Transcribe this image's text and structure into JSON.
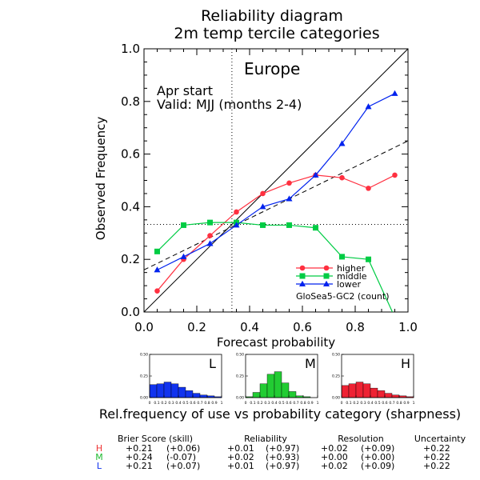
{
  "chart_data": {
    "type": "line",
    "title": "Reliability diagram",
    "subtitle": "2m temp tercile categories",
    "region": "Europe",
    "annotation_line1": "Apr start",
    "annotation_line2": "Valid: MJJ (months 2-4)",
    "model_label": "GloSea5-GC2 (count)",
    "xlabel": "Forecast probability",
    "ylabel": "Observed Frequency",
    "xlim": [
      0,
      1
    ],
    "ylim": [
      0,
      1
    ],
    "x_ticks": [
      "0.0",
      "0.2",
      "0.4",
      "0.6",
      "0.8",
      "1.0"
    ],
    "y_ticks": [
      "0.0",
      "0.2",
      "0.4",
      "0.6",
      "0.8",
      "1.0"
    ],
    "climatology_x": 0.333,
    "climatology_y": 0.333,
    "legend_position": "bottom-right",
    "series": [
      {
        "name": "higher",
        "color": "#ff3040",
        "marker": "circle",
        "x": [
          0.05,
          0.15,
          0.25,
          0.35,
          0.45,
          0.55,
          0.65,
          0.75,
          0.85,
          0.95
        ],
        "values": [
          0.08,
          0.2,
          0.29,
          0.38,
          0.45,
          0.49,
          0.52,
          0.51,
          0.47,
          0.52
        ]
      },
      {
        "name": "middle",
        "color": "#00cc44",
        "marker": "square",
        "x": [
          0.05,
          0.15,
          0.25,
          0.35,
          0.45,
          0.55,
          0.65,
          0.75,
          0.85,
          0.95
        ],
        "values": [
          0.23,
          0.33,
          0.34,
          0.34,
          0.33,
          0.33,
          0.32,
          0.21,
          0.2,
          -0.02
        ]
      },
      {
        "name": "lower",
        "color": "#0022ee",
        "marker": "triangle",
        "x": [
          0.05,
          0.15,
          0.25,
          0.35,
          0.45,
          0.55,
          0.65,
          0.75,
          0.85,
          0.95
        ],
        "values": [
          0.16,
          0.21,
          0.26,
          0.33,
          0.4,
          0.43,
          0.52,
          0.64,
          0.78,
          0.83
        ]
      }
    ],
    "regression_line": {
      "x": [
        0,
        1
      ],
      "y": [
        0.16,
        0.65
      ]
    },
    "sharpness": {
      "title": "Rel.frequency of use vs probability category (sharpness)",
      "ylim": [
        0,
        0.5
      ],
      "y_ticks": [
        "0.00",
        "0.25",
        "0.50"
      ],
      "x_ticks": [
        "0",
        "0.2",
        "0.4",
        "0.6",
        "0.8",
        "1"
      ],
      "histograms": [
        {
          "letter": "L",
          "color": "#1133ee",
          "values": [
            0.15,
            0.16,
            0.18,
            0.16,
            0.12,
            0.08,
            0.05,
            0.03,
            0.02,
            0.01
          ]
        },
        {
          "letter": "M",
          "color": "#22cc33",
          "values": [
            0.01,
            0.06,
            0.16,
            0.27,
            0.3,
            0.17,
            0.07,
            0.02,
            0.01,
            0.0
          ]
        },
        {
          "letter": "H",
          "color": "#ee2233",
          "values": [
            0.14,
            0.16,
            0.18,
            0.16,
            0.11,
            0.08,
            0.05,
            0.03,
            0.02,
            0.01
          ]
        }
      ]
    },
    "scores": {
      "headers": [
        "Brier Score (skill)",
        "Reliability",
        "Resolution",
        "Uncertainty"
      ],
      "rows": [
        {
          "label": "H",
          "color": "#ee3333",
          "bs": "+0.21",
          "bss": "(+0.06)",
          "rel": "+0.01",
          "rels": "(+0.97)",
          "res": "+0.02",
          "ress": "(+0.09)",
          "unc": "+0.22"
        },
        {
          "label": "M",
          "color": "#22bb33",
          "bs": "+0.24",
          "bss": "(-0.07)",
          "rel": "+0.02",
          "rels": "(+0.93)",
          "res": "+0.00",
          "ress": "(+0.00)",
          "unc": "+0.22"
        },
        {
          "label": "L",
          "color": "#1133ee",
          "bs": "+0.21",
          "bss": "(+0.07)",
          "rel": "+0.01",
          "rels": "(+0.97)",
          "res": "+0.02",
          "ress": "(+0.09)",
          "unc": "+0.22"
        }
      ]
    }
  }
}
